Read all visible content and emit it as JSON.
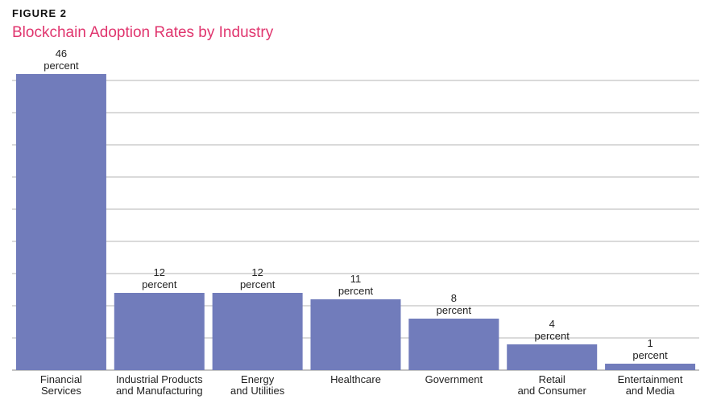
{
  "figure_label": "FIGURE 2",
  "chart_data": {
    "type": "bar",
    "title": "Blockchain Adoption Rates by Industry",
    "xlabel": "",
    "ylabel": "",
    "ylim": [
      0,
      46
    ],
    "unit": "percent",
    "bar_color": "#717cbb",
    "grid_color": "#b5b5b5",
    "categories": [
      [
        "Financial",
        "Services"
      ],
      [
        "Industrial Products",
        "and Manufacturing"
      ],
      [
        "Energy",
        "and Utilities"
      ],
      [
        "Healthcare"
      ],
      [
        "Government"
      ],
      [
        "Retail",
        "and Consumer"
      ],
      [
        "Entertainment",
        "and Media"
      ]
    ],
    "values": [
      46,
      12,
      12,
      11,
      8,
      4,
      1
    ]
  }
}
